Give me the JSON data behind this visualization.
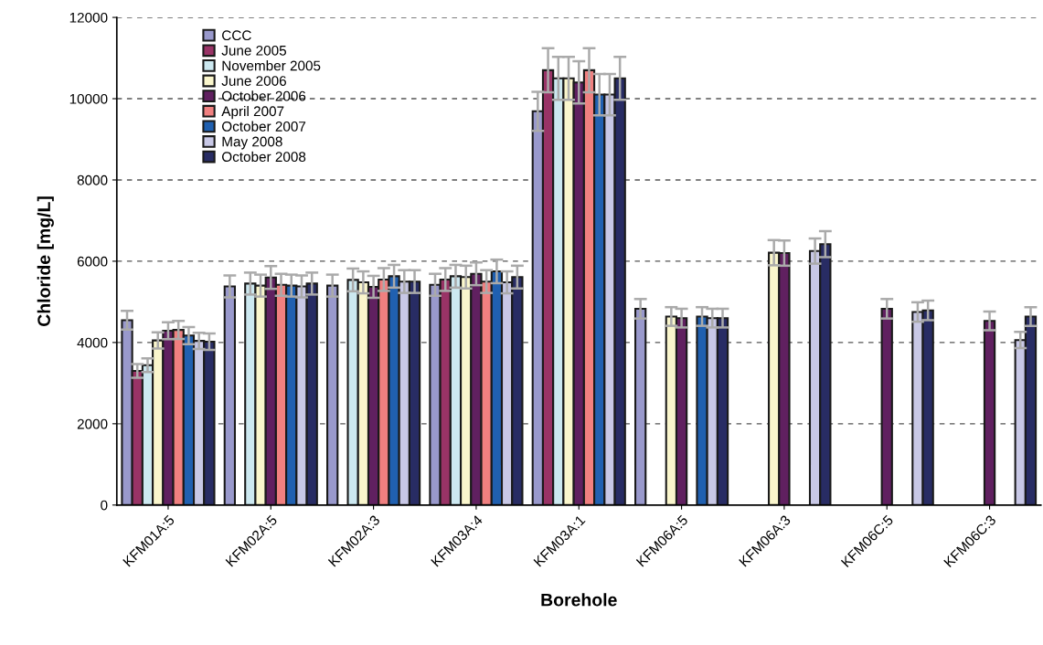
{
  "chart_data": {
    "type": "bar",
    "xlabel": "Borehole",
    "ylabel": "Chloride [mg/L]",
    "categories": [
      "KFM01A:5",
      "KFM02A:5",
      "KFM02A:3",
      "KFM03A:4",
      "KFM03A:1",
      "KFM06A:5",
      "KFM06A:3",
      "KFM06C:5",
      "KFM06C:3"
    ],
    "series": [
      {
        "name": "CCC",
        "color": "#9999cc",
        "values": [
          4550,
          5380,
          5400,
          5420,
          9690,
          4830,
          null,
          null,
          null
        ],
        "errors": [
          230,
          270,
          270,
          270,
          480,
          240,
          null,
          null,
          null
        ]
      },
      {
        "name": "June 2005",
        "color": "#993366",
        "values": [
          3300,
          null,
          null,
          5550,
          10700,
          null,
          null,
          null,
          null
        ],
        "errors": [
          170,
          null,
          null,
          280,
          540,
          null,
          null,
          null,
          null
        ]
      },
      {
        "name": "November 2005",
        "color": "#cce8f0",
        "values": [
          3440,
          5450,
          5540,
          5630,
          10500,
          null,
          null,
          null,
          null
        ],
        "errors": [
          170,
          270,
          280,
          280,
          530,
          null,
          null,
          null,
          null
        ]
      },
      {
        "name": "June 2006",
        "color": "#faf6cc",
        "values": [
          4050,
          5400,
          5480,
          5610,
          10500,
          4640,
          6210,
          null,
          null
        ],
        "errors": [
          200,
          270,
          270,
          280,
          530,
          230,
          310,
          null,
          null
        ]
      },
      {
        "name": "October 2006",
        "color": "#602060",
        "values": [
          4290,
          5600,
          5370,
          5690,
          10400,
          4600,
          6200,
          4830,
          4530
        ],
        "errors": [
          210,
          280,
          270,
          280,
          520,
          230,
          310,
          240,
          230
        ]
      },
      {
        "name": "April 2007",
        "color": "#f08080",
        "values": [
          4310,
          5420,
          5550,
          5500,
          10700,
          null,
          null,
          null,
          null
        ],
        "errors": [
          220,
          270,
          280,
          280,
          540,
          null,
          null,
          null,
          null
        ]
      },
      {
        "name": "October 2007",
        "color": "#2060b0",
        "values": [
          4170,
          5400,
          5630,
          5750,
          10100,
          4640,
          null,
          null,
          null
        ],
        "errors": [
          210,
          270,
          280,
          290,
          510,
          230,
          null,
          null,
          null
        ]
      },
      {
        "name": "May 2008",
        "color": "#c8c8e6",
        "values": [
          4040,
          5380,
          5500,
          5480,
          10100,
          4600,
          6250,
          4750,
          4060
        ],
        "errors": [
          200,
          270,
          280,
          270,
          510,
          230,
          310,
          240,
          200
        ]
      },
      {
        "name": "October 2008",
        "color": "#282c64",
        "values": [
          4020,
          5450,
          5500,
          5610,
          10500,
          4600,
          6420,
          4790,
          4640
        ],
        "errors": [
          200,
          270,
          280,
          280,
          530,
          230,
          320,
          240,
          230
        ]
      }
    ],
    "ylim": [
      0,
      12000
    ],
    "yticks": [
      0,
      2000,
      4000,
      6000,
      8000,
      10000,
      12000
    ],
    "grid": "y",
    "legend": "top left"
  }
}
